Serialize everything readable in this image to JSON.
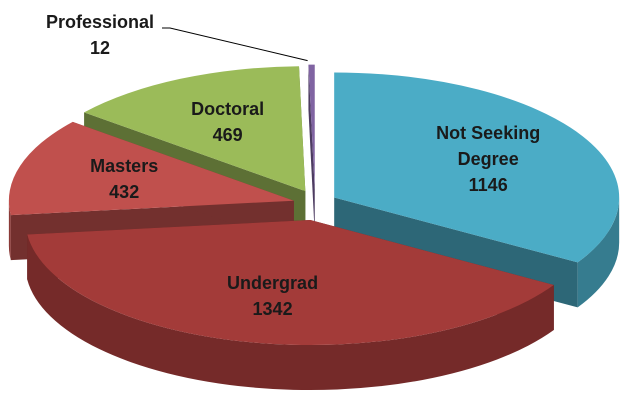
{
  "chart_data": {
    "type": "pie",
    "categories": [
      "Not Seeking Degree",
      "Undergrad",
      "Masters",
      "Doctoral",
      "Professional"
    ],
    "values": [
      1146,
      1342,
      432,
      469,
      12
    ],
    "colors": [
      "#4bacc6",
      "#a33b39",
      "#c0504d",
      "#9bbb59",
      "#8064a2"
    ]
  }
}
